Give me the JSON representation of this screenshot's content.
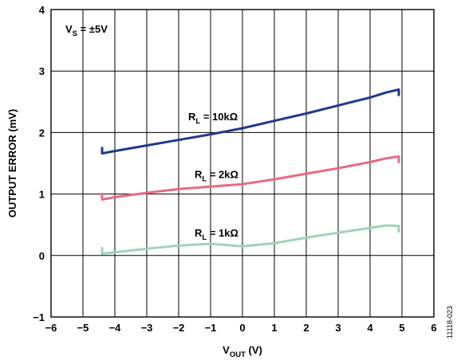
{
  "chart_data": {
    "type": "line",
    "x": [
      -4.4,
      -4.0,
      -3.0,
      -2.0,
      -1.0,
      0.0,
      1.0,
      2.0,
      3.0,
      4.0,
      4.5,
      4.9
    ],
    "series": [
      {
        "name": "RL = 10kΩ",
        "label_main": "R",
        "label_sub": "L",
        "label_rest": " = 10kΩ",
        "label_x": -1.7,
        "label_y": 2.2,
        "color": "#1f3a8a",
        "values": [
          1.66,
          1.7,
          1.79,
          1.88,
          1.97,
          2.07,
          2.19,
          2.31,
          2.44,
          2.57,
          2.65,
          2.7
        ]
      },
      {
        "name": "RL = 2kΩ",
        "label_main": "R",
        "label_sub": "L",
        "label_rest": " = 2kΩ",
        "label_x": -1.5,
        "label_y": 1.26,
        "color": "#e86a80",
        "values": [
          0.91,
          0.95,
          1.02,
          1.08,
          1.12,
          1.16,
          1.24,
          1.33,
          1.42,
          1.52,
          1.58,
          1.61
        ]
      },
      {
        "name": "RL = 1kΩ",
        "label_main": "R",
        "label_sub": "L",
        "label_rest": " = 1kΩ",
        "label_x": -1.5,
        "label_y": 0.31,
        "color": "#9fd3b8",
        "values": [
          0.03,
          0.05,
          0.11,
          0.16,
          0.19,
          0.15,
          0.2,
          0.29,
          0.37,
          0.45,
          0.49,
          0.48
        ]
      }
    ],
    "xlabel_main": "V",
    "xlabel_sub": "OUT",
    "xlabel_unit": " (V)",
    "ylabel": "OUTPUT ERROR (mV)",
    "xlim": [
      -6,
      6
    ],
    "ylim": [
      -1,
      4
    ],
    "xticks": [
      -6,
      -5,
      -4,
      -3,
      -2,
      -1,
      0,
      1,
      2,
      3,
      4,
      5,
      6
    ],
    "yticks": [
      -1,
      0,
      1,
      2,
      3,
      4
    ],
    "grid": true,
    "annotation": {
      "main": "V",
      "sub": "S",
      "rest": " = ±5V"
    }
  },
  "figure_id": "11118-023"
}
